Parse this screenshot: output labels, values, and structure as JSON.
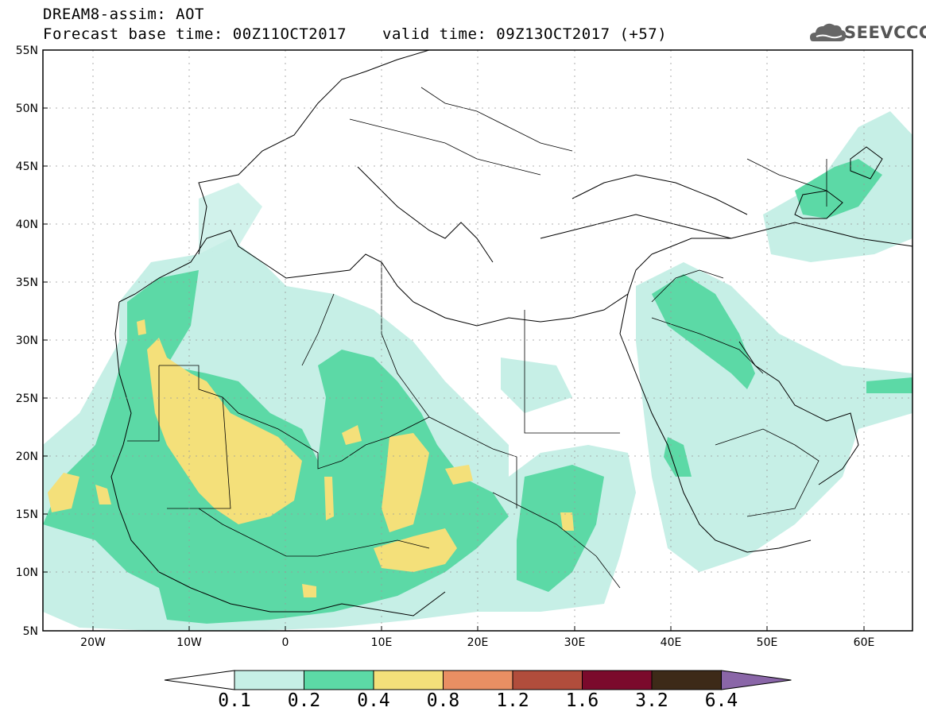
{
  "header": {
    "title_line1": "DREAM8-assim: AOT",
    "title_line2": "Forecast base time: 00Z11OCT2017",
    "valid_time": "valid time: 09Z13OCT2017 (+57)",
    "logo_text": "SEEVCCC"
  },
  "map": {
    "lon_range": [
      -25,
      65
    ],
    "lat_range": [
      5,
      55
    ],
    "lat_labels": [
      "55N",
      "50N",
      "45N",
      "40N",
      "35N",
      "30N",
      "25N",
      "20N",
      "15N",
      "10N",
      "5N"
    ],
    "lon_labels": [
      "20W",
      "10W",
      "0",
      "10E",
      "20E",
      "30E",
      "40E",
      "50E",
      "60E"
    ],
    "grid": "dotted"
  },
  "colorbar": {
    "thresholds": [
      "0.1",
      "0.2",
      "0.4",
      "0.8",
      "1.2",
      "1.6",
      "3.2",
      "6.4"
    ],
    "colors": [
      "#ffffff",
      "#c6efe6",
      "#5cd9a6",
      "#f4e07a",
      "#e98f63",
      "#b14d3c",
      "#7b0a2c",
      "#3d2a18",
      "#8a66a8"
    ]
  }
}
